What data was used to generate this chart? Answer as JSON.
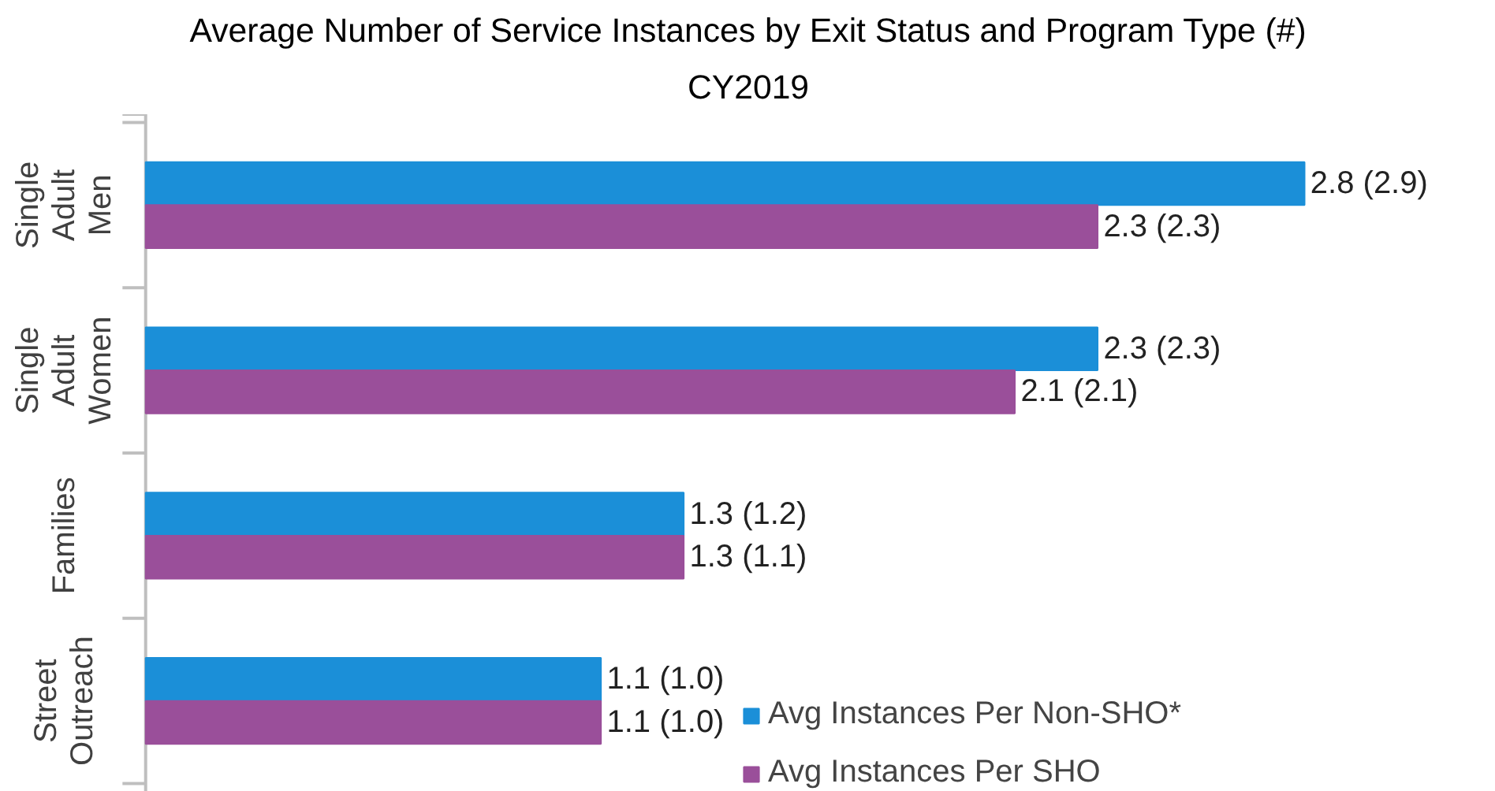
{
  "chart_data": {
    "type": "bar",
    "orientation": "horizontal",
    "title": "Average Number of Service Instances by Exit Status and Program Type (#)",
    "subtitle": "CY2019",
    "categories": [
      "Single Adult Men",
      "Single Adult Women",
      "Families",
      "Street Outreach"
    ],
    "series": [
      {
        "name": "Avg Instances Per Non-SHO*",
        "color": "#1b8fd8",
        "values": [
          2.8,
          2.3,
          1.3,
          1.1
        ],
        "value_labels": [
          "2.8 (2.9)",
          "2.3 (2.3)",
          "1.3 (1.2)",
          "1.1 (1.0)"
        ]
      },
      {
        "name": "Avg Instances Per SHO",
        "color": "#9a4f9a",
        "values": [
          2.3,
          2.1,
          1.3,
          1.1
        ],
        "value_labels": [
          "2.3 (2.3)",
          "2.1 (2.1)",
          "1.3 (1.1)",
          "1.1 (1.0)"
        ]
      }
    ],
    "legend": "bottom right",
    "grid": false
  }
}
